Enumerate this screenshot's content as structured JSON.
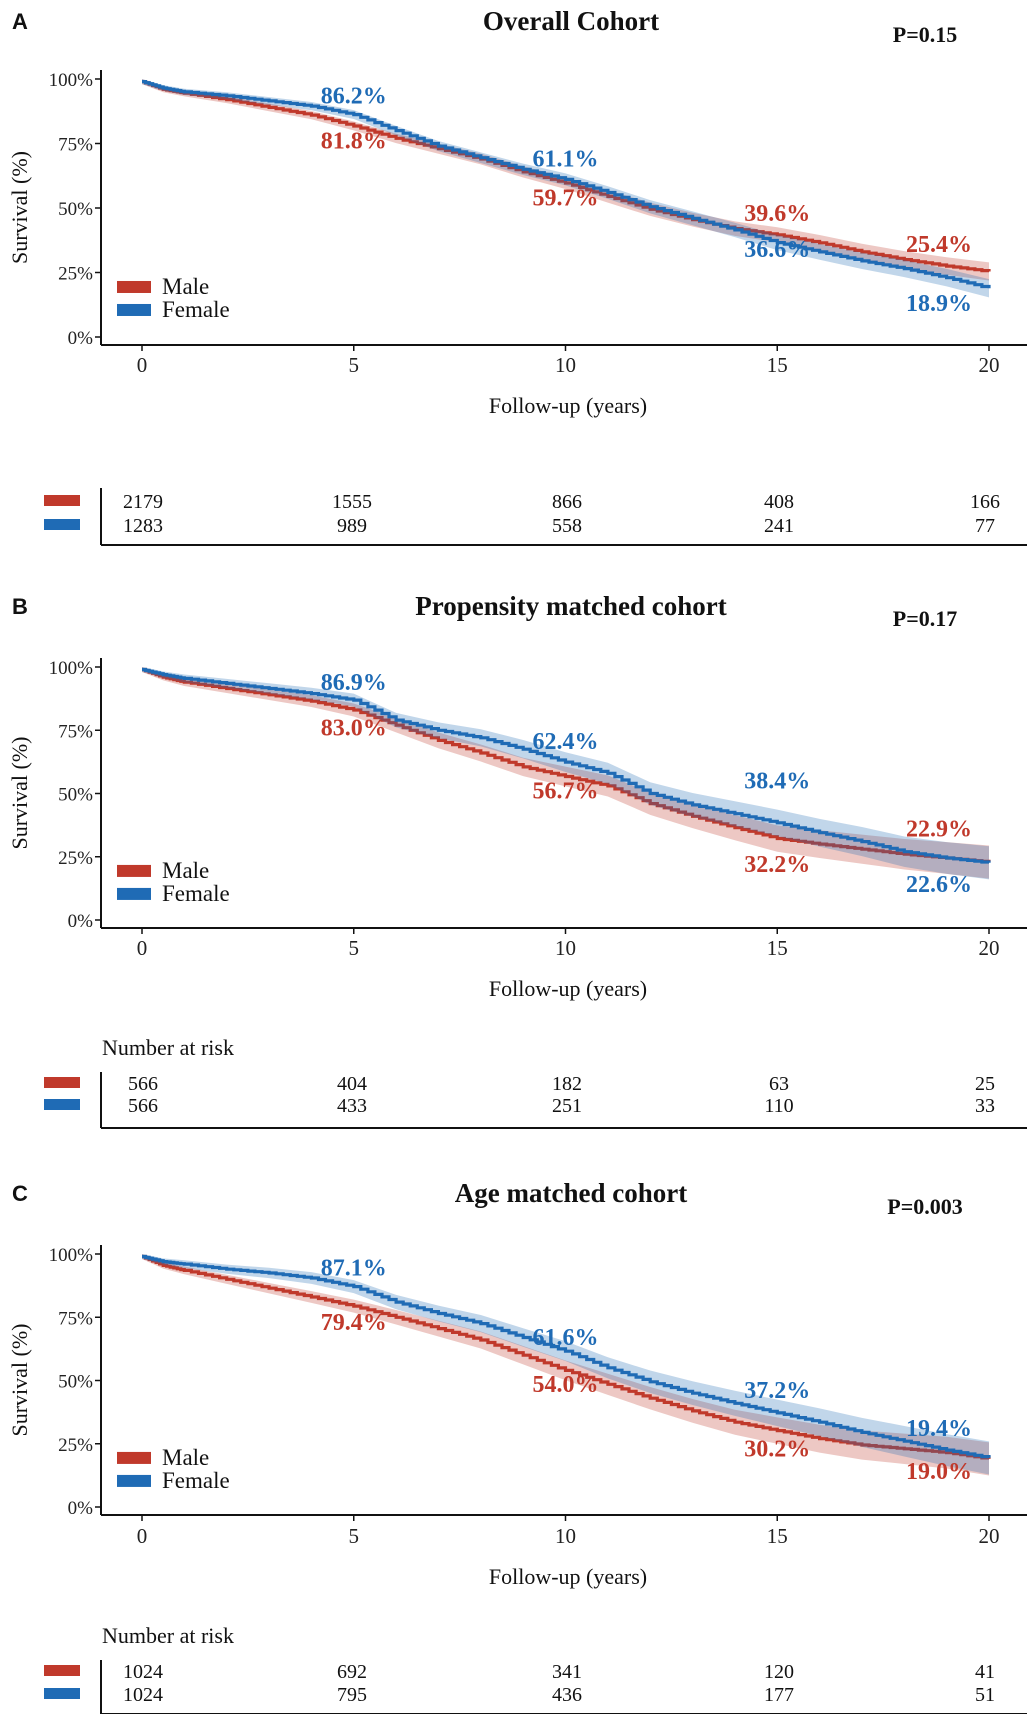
{
  "chart_data": [
    {
      "type": "line",
      "panel": "A",
      "title": "Overall Cohort",
      "p_value": "P=0.15",
      "xlabel": "Follow-up (years)",
      "ylabel": "Survival (%)",
      "xlim": [
        0,
        20
      ],
      "ylim": [
        0,
        100
      ],
      "xticks": [
        "0",
        "5",
        "10",
        "15",
        "20"
      ],
      "yticks": [
        "0%",
        "25%",
        "50%",
        "75%",
        "100%"
      ],
      "legend": "bottom-left",
      "series": [
        {
          "name": "Male",
          "color": "#c0392b",
          "x": [
            0,
            0.5,
            1,
            2,
            3,
            4,
            5,
            6,
            7,
            8,
            9,
            10,
            11,
            12,
            13,
            14,
            15,
            16,
            17,
            18,
            19,
            20
          ],
          "y": [
            99,
            96,
            94.5,
            92,
            89,
            86,
            81.8,
            77,
            73,
            69,
            64,
            59.7,
            54.5,
            49.5,
            45.5,
            42,
            39.6,
            36.5,
            33,
            30,
            27.5,
            25.4
          ]
        },
        {
          "name": "Female",
          "color": "#1f6bb5",
          "x": [
            0,
            0.5,
            1,
            2,
            3,
            4,
            5,
            6,
            7,
            8,
            9,
            10,
            11,
            12,
            13,
            14,
            15,
            16,
            17,
            18,
            19,
            20
          ],
          "y": [
            99,
            96.5,
            95,
            93.5,
            91.5,
            89.5,
            86.2,
            80,
            74,
            69.5,
            65,
            61.1,
            56,
            50.5,
            46,
            41.5,
            36.6,
            33,
            29.5,
            26.5,
            23,
            18.9
          ]
        }
      ],
      "annotations": [
        {
          "text": "86.2%",
          "series": "Female"
        },
        {
          "text": "81.8%",
          "series": "Male"
        },
        {
          "text": "61.1%",
          "series": "Female"
        },
        {
          "text": "59.7%",
          "series": "Male"
        },
        {
          "text": "39.6%",
          "series": "Male"
        },
        {
          "text": "36.6%",
          "series": "Female"
        },
        {
          "text": "25.4%",
          "series": "Male"
        },
        {
          "text": "18.9%",
          "series": "Female"
        }
      ],
      "risk_table": {
        "title": "",
        "times": [
          "0",
          "5",
          "10",
          "15",
          "20"
        ],
        "male": [
          "2179",
          "1555",
          "866",
          "408",
          "166"
        ],
        "female": [
          "1283",
          "989",
          "558",
          "241",
          "77"
        ]
      }
    },
    {
      "type": "line",
      "panel": "B",
      "title": "Propensity matched cohort",
      "p_value": "P=0.17",
      "xlabel": "Follow-up (years)",
      "ylabel": "Survival (%)",
      "xlim": [
        0,
        20
      ],
      "ylim": [
        0,
        100
      ],
      "xticks": [
        "0",
        "5",
        "10",
        "15",
        "20"
      ],
      "yticks": [
        "0%",
        "25%",
        "50%",
        "75%",
        "100%"
      ],
      "legend": "bottom-left",
      "series": [
        {
          "name": "Male",
          "color": "#c0392b",
          "x": [
            0,
            0.5,
            1,
            2,
            3,
            4,
            5,
            6,
            7,
            8,
            9,
            10,
            11,
            12,
            13,
            14,
            15,
            16,
            17,
            18,
            19,
            20
          ],
          "y": [
            99,
            96,
            94,
            91.5,
            89,
            86.5,
            83,
            77,
            71,
            66,
            60.5,
            56.7,
            53,
            46,
            41,
            36.5,
            32.2,
            30,
            28,
            26,
            24.5,
            22.9
          ]
        },
        {
          "name": "Female",
          "color": "#1f6bb5",
          "x": [
            0,
            0.5,
            1,
            2,
            3,
            4,
            5,
            6,
            7,
            8,
            9,
            10,
            11,
            12,
            13,
            14,
            15,
            16,
            17,
            18,
            19,
            20
          ],
          "y": [
            99,
            97,
            95.5,
            93.5,
            91.5,
            89.5,
            86.9,
            79,
            75,
            72,
            67.5,
            62.4,
            58,
            50,
            45.5,
            42,
            38.4,
            34.5,
            31,
            27,
            24.5,
            22.6
          ]
        }
      ],
      "annotations": [
        {
          "text": "86.9%",
          "series": "Female"
        },
        {
          "text": "83.0%",
          "series": "Male"
        },
        {
          "text": "62.4%",
          "series": "Female"
        },
        {
          "text": "56.7%",
          "series": "Male"
        },
        {
          "text": "38.4%",
          "series": "Female"
        },
        {
          "text": "32.2%",
          "series": "Male"
        },
        {
          "text": "22.9%",
          "series": "Male"
        },
        {
          "text": "22.6%",
          "series": "Female"
        }
      ],
      "risk_table": {
        "title": "Number at risk",
        "times": [
          "0",
          "5",
          "10",
          "15",
          "20"
        ],
        "male": [
          "566",
          "404",
          "182",
          "63",
          "25"
        ],
        "female": [
          "566",
          "433",
          "251",
          "110",
          "33"
        ]
      }
    },
    {
      "type": "line",
      "panel": "C",
      "title": "Age matched cohort",
      "p_value": "P=0.003",
      "xlabel": "Follow-up (years)",
      "ylabel": "Survival (%)",
      "xlim": [
        0,
        20
      ],
      "ylim": [
        0,
        100
      ],
      "xticks": [
        "0",
        "5",
        "10",
        "15",
        "20"
      ],
      "yticks": [
        "0%",
        "25%",
        "50%",
        "75%",
        "100%"
      ],
      "legend": "bottom-left",
      "series": [
        {
          "name": "Male",
          "color": "#c0392b",
          "x": [
            0,
            0.5,
            1,
            2,
            3,
            4,
            5,
            6,
            7,
            8,
            9,
            10,
            11,
            12,
            13,
            14,
            15,
            16,
            17,
            18,
            19,
            20
          ],
          "y": [
            99,
            95.5,
            93.5,
            90,
            86.5,
            83,
            79.4,
            75,
            70.5,
            66,
            60,
            54,
            48.5,
            43,
            38,
            33.5,
            30.2,
            27,
            24.5,
            23,
            21.5,
            19
          ]
        },
        {
          "name": "Female",
          "color": "#1f6bb5",
          "x": [
            0,
            0.5,
            1,
            2,
            3,
            4,
            5,
            6,
            7,
            8,
            9,
            10,
            11,
            12,
            13,
            14,
            15,
            16,
            17,
            18,
            19,
            20
          ],
          "y": [
            99,
            97,
            96,
            94,
            92.5,
            90.5,
            87.1,
            81,
            76.5,
            72.5,
            67,
            61.6,
            55,
            49.5,
            45,
            41,
            37.2,
            33.5,
            29.5,
            26,
            22.5,
            19.4
          ]
        }
      ],
      "annotations": [
        {
          "text": "87.1%",
          "series": "Female"
        },
        {
          "text": "79.4%",
          "series": "Male"
        },
        {
          "text": "61.6%",
          "series": "Female"
        },
        {
          "text": "54.0%",
          "series": "Male"
        },
        {
          "text": "37.2%",
          "series": "Female"
        },
        {
          "text": "30.2%",
          "series": "Male"
        },
        {
          "text": "19.4%",
          "series": "Female"
        },
        {
          "text": "19.0%",
          "series": "Male"
        }
      ],
      "risk_table": {
        "title": "Number at risk",
        "times": [
          "0",
          "5",
          "10",
          "15",
          "20"
        ],
        "male": [
          "1024",
          "692",
          "341",
          "120",
          "41"
        ],
        "female": [
          "1024",
          "795",
          "436",
          "177",
          "51"
        ]
      }
    }
  ]
}
